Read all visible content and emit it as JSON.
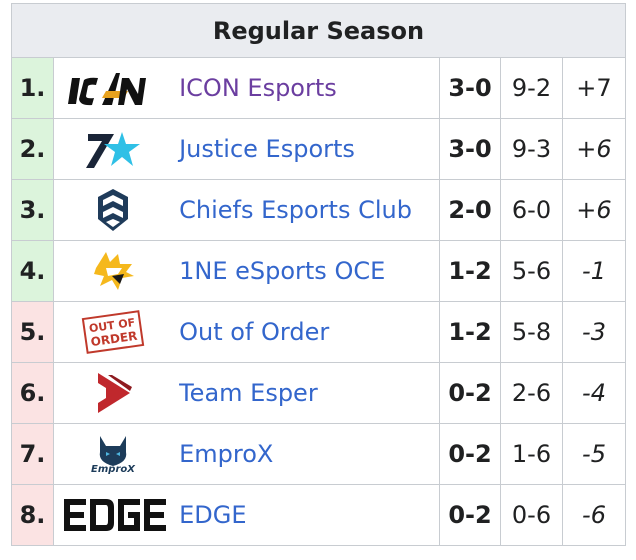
{
  "table": {
    "title": "Regular Season",
    "rows": [
      {
        "rank": "1.",
        "team": "ICON Esports",
        "record": "3-0",
        "games": "9-2",
        "diff": "+7",
        "logo": "icon-esports-logo"
      },
      {
        "rank": "2.",
        "team": "Justice Esports",
        "record": "3-0",
        "games": "9-3",
        "diff": "+6",
        "logo": "justice-esports-logo"
      },
      {
        "rank": "3.",
        "team": "Chiefs Esports Club",
        "record": "2-0",
        "games": "6-0",
        "diff": "+6",
        "logo": "chiefs-esports-logo"
      },
      {
        "rank": "4.",
        "team": "1NE eSports OCE",
        "record": "1-2",
        "games": "5-6",
        "diff": "-1",
        "logo": "1ne-esports-logo"
      },
      {
        "rank": "5.",
        "team": "Out of Order",
        "record": "1-2",
        "games": "5-8",
        "diff": "-3",
        "logo": "out-of-order-logo"
      },
      {
        "rank": "6.",
        "team": "Team Esper",
        "record": "0-2",
        "games": "2-6",
        "diff": "-4",
        "logo": "team-esper-logo"
      },
      {
        "rank": "7.",
        "team": "EmproX",
        "record": "0-2",
        "games": "1-6",
        "diff": "-5",
        "logo": "emprox-logo"
      },
      {
        "rank": "8.",
        "team": "EDGE",
        "record": "0-2",
        "games": "0-6",
        "diff": "-6",
        "logo": "edge-logo"
      }
    ],
    "logo_text": {
      "out_of_order": [
        "OUT OF",
        "ORDER"
      ],
      "emprox": "EmproX"
    },
    "colors": {
      "advance": "#dcf4dc",
      "eliminated": "#fbe3e3",
      "link": "#3366cc",
      "link_visited": "#6b3ea0",
      "border": "#c8ccd1",
      "header_bg": "#eaecf0"
    }
  }
}
